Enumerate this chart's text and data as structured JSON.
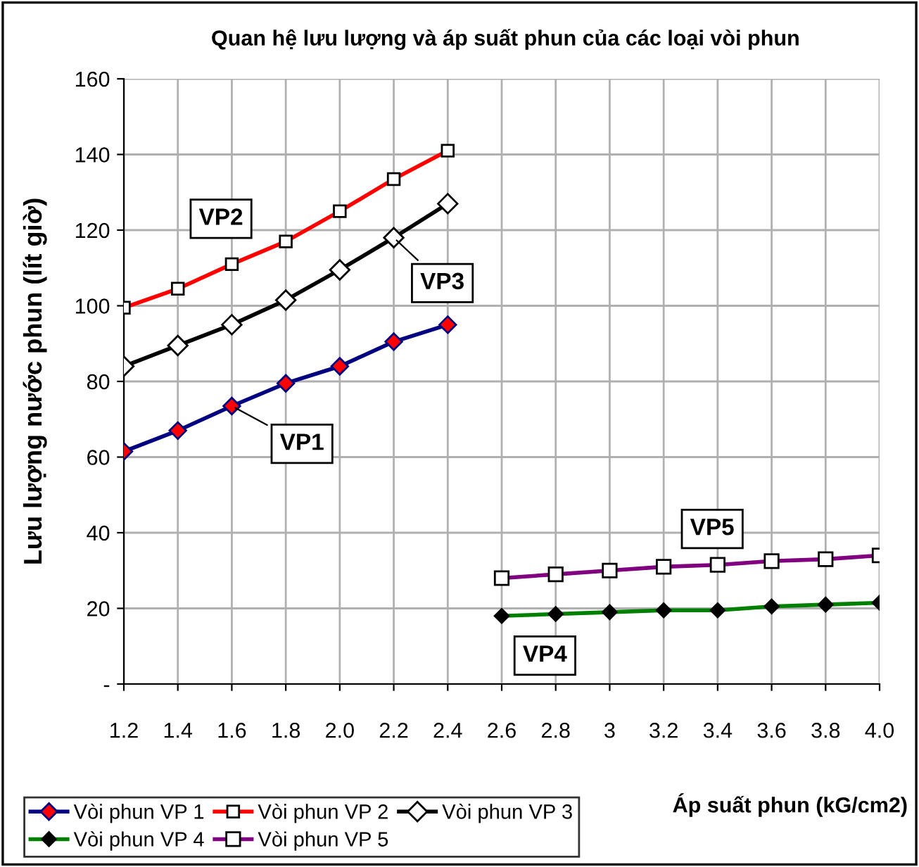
{
  "chart_data": {
    "type": "line",
    "title": "Quan hệ lưu lượng và áp suất phun của các loại vòi phun",
    "xlabel": "Áp suất phun (kG/cm2)",
    "ylabel": "Lưu lượng nước phun (lít giờ)",
    "categories": [
      "1.2",
      "1.4",
      "1.6",
      "1.8",
      "2.0",
      "2.2",
      "2.4",
      "2.6",
      "2.8",
      "3",
      "3.2",
      "3.4",
      "3.6",
      "3.8",
      "4.0"
    ],
    "series": [
      {
        "name": "Vòi phun VP 1",
        "color": "#000080",
        "marker": "diamond",
        "values": [
          61.5,
          67,
          73.5,
          79.5,
          84,
          90.5,
          95,
          null,
          null,
          null,
          null,
          null,
          null,
          null,
          null
        ]
      },
      {
        "name": "Vòi phun VP 2",
        "color": "#ff0000",
        "marker": "square",
        "values": [
          99.5,
          104.5,
          111,
          117,
          125,
          133.5,
          141,
          null,
          null,
          null,
          null,
          null,
          null,
          null,
          null
        ]
      },
      {
        "name": "Vòi phun VP 3",
        "color": "#000000",
        "marker": "diamond",
        "values": [
          84,
          89.5,
          95,
          101.5,
          109.5,
          118,
          127,
          null,
          null,
          null,
          null,
          null,
          null,
          null,
          null
        ]
      },
      {
        "name": "Vòi phun VP 4",
        "color": "#008000",
        "marker": "diamond",
        "values": [
          null,
          null,
          null,
          null,
          null,
          null,
          null,
          18,
          18.5,
          19,
          19.5,
          19.5,
          20.5,
          21,
          21.5
        ]
      },
      {
        "name": "Vòi phun VP 5",
        "color": "#800080",
        "marker": "square",
        "values": [
          null,
          null,
          null,
          null,
          null,
          null,
          null,
          28,
          29,
          30,
          31,
          31.5,
          32.5,
          33,
          34
        ]
      }
    ],
    "annotations": [
      {
        "text": "VP1",
        "x": "1.6",
        "y": 73.5
      },
      {
        "text": "VP2",
        "x": "1.6",
        "y": 111
      },
      {
        "text": "VP3",
        "x": "2.2",
        "y": 118
      },
      {
        "text": "VP4",
        "x": "2.8",
        "y": 18.5
      },
      {
        "text": "VP5",
        "x": "3.2",
        "y": 31
      }
    ],
    "ylim": [
      0,
      160
    ],
    "yticks": [
      {
        "value": 0,
        "label": "-"
      },
      20,
      40,
      60,
      80,
      100,
      120,
      140,
      160
    ],
    "grid": true,
    "legend": "bottom",
    "line_style": "solid"
  }
}
